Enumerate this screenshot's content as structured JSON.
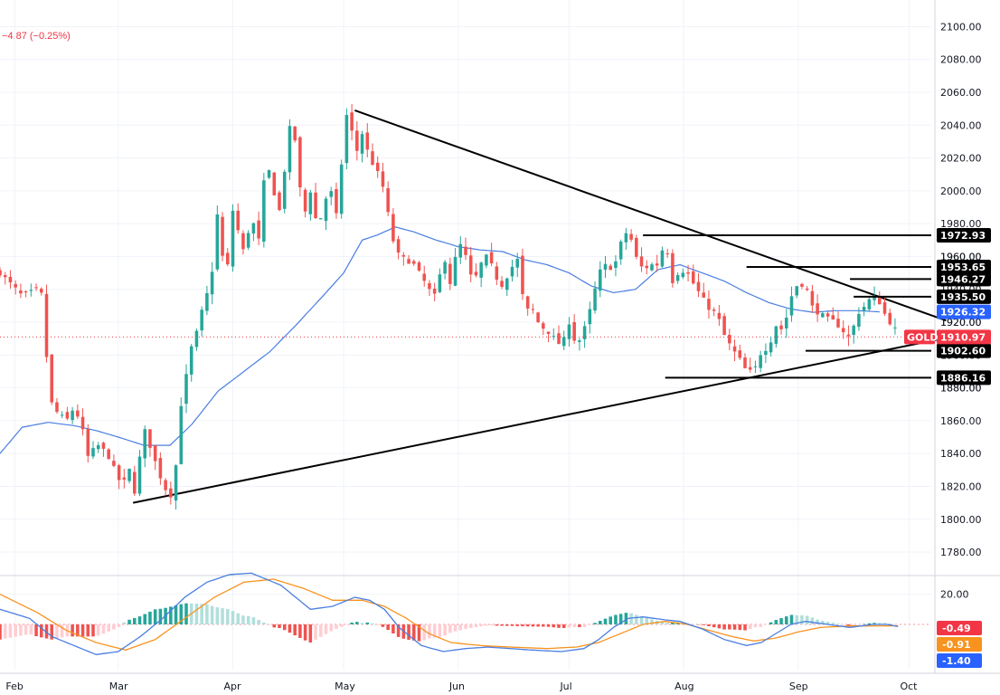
{
  "header": {
    "change": "−4.87 (−0.25%)"
  },
  "colors": {
    "up": "#26a69a",
    "down": "#ef5350",
    "ma": "#4a7ee0",
    "macd": "#4a7ee0",
    "signal": "#f7931e",
    "hist_pos_strong": "#26a69a",
    "hist_pos_weak": "#b2dfdb",
    "hist_neg_strong": "#ef5350",
    "hist_neg_weak": "#ffcdd2",
    "grid": "#f0f3fa",
    "label_black": "#000000",
    "price_red": "#f23645"
  },
  "chart_data": [
    {
      "type": "candlestick",
      "symbol": "GOLD",
      "x_labels": [
        "Feb",
        "Mar",
        "Apr",
        "May",
        "Jun",
        "Jul",
        "Aug",
        "Sep",
        "Oct"
      ],
      "x_label_days": [
        0,
        28,
        59,
        89,
        120,
        150,
        181,
        212,
        242
      ],
      "x_range_days": [
        -4,
        248
      ],
      "y_ticks": [
        1780,
        1800,
        1820,
        1840,
        1860,
        1880,
        1900,
        1920,
        1940,
        1960,
        1980,
        2000,
        2020,
        2040,
        2060,
        2080,
        2100
      ],
      "y_range": [
        1769,
        2103
      ],
      "ohlc_anchors": [
        [
          -4,
          1950
        ],
        [
          2,
          1936
        ],
        [
          6,
          1940
        ],
        [
          8,
          1935
        ],
        [
          9,
          1875
        ],
        [
          11,
          1866
        ],
        [
          14,
          1860
        ],
        [
          16,
          1868
        ],
        [
          18,
          1858
        ],
        [
          20,
          1836
        ],
        [
          22,
          1846
        ],
        [
          25,
          1840
        ],
        [
          27,
          1830
        ],
        [
          29,
          1820
        ],
        [
          31,
          1830
        ],
        [
          32,
          1811
        ],
        [
          35,
          1855
        ],
        [
          37,
          1842
        ],
        [
          39,
          1828
        ],
        [
          42,
          1812
        ],
        [
          44,
          1838
        ],
        [
          45,
          1870
        ],
        [
          48,
          1907
        ],
        [
          50,
          1918
        ],
        [
          51,
          1932
        ],
        [
          53,
          1942
        ],
        [
          55,
          1990
        ],
        [
          57,
          1940
        ],
        [
          59,
          1988
        ],
        [
          62,
          1962
        ],
        [
          64,
          1984
        ],
        [
          66,
          1970
        ],
        [
          68,
          2020
        ],
        [
          70,
          2000
        ],
        [
          72,
          1985
        ],
        [
          74,
          2040
        ],
        [
          76,
          2030
        ],
        [
          78,
          1982
        ],
        [
          80,
          2000
        ],
        [
          82,
          1976
        ],
        [
          84,
          1995
        ],
        [
          86,
          2000
        ],
        [
          87,
          1985
        ],
        [
          89,
          2030
        ],
        [
          90,
          2050
        ],
        [
          91,
          2040
        ],
        [
          92,
          2020
        ],
        [
          94,
          2035
        ],
        [
          96,
          2020
        ],
        [
          98,
          2012
        ],
        [
          100,
          2000
        ],
        [
          102,
          1972
        ],
        [
          104,
          1960
        ],
        [
          106,
          1958
        ],
        [
          108,
          1955
        ],
        [
          110,
          1948
        ],
        [
          112,
          1940
        ],
        [
          114,
          1935
        ],
        [
          116,
          1962
        ],
        [
          118,
          1942
        ],
        [
          120,
          1970
        ],
        [
          122,
          1960
        ],
        [
          124,
          1943
        ],
        [
          126,
          1955
        ],
        [
          128,
          1961
        ],
        [
          130,
          1948
        ],
        [
          132,
          1942
        ],
        [
          134,
          1952
        ],
        [
          136,
          1958
        ],
        [
          138,
          1927
        ],
        [
          140,
          1928
        ],
        [
          142,
          1918
        ],
        [
          144,
          1915
        ],
        [
          146,
          1910
        ],
        [
          148,
          1905
        ],
        [
          150,
          1920
        ],
        [
          152,
          1905
        ],
        [
          154,
          1915
        ],
        [
          156,
          1930
        ],
        [
          158,
          1950
        ],
        [
          160,
          1955
        ],
        [
          162,
          1952
        ],
        [
          164,
          1968
        ],
        [
          166,
          1977
        ],
        [
          168,
          1960
        ],
        [
          170,
          1952
        ],
        [
          172,
          1955
        ],
        [
          174,
          1955
        ],
        [
          176,
          1970
        ],
        [
          178,
          1945
        ],
        [
          180,
          1952
        ],
        [
          182,
          1950
        ],
        [
          184,
          1942
        ],
        [
          186,
          1935
        ],
        [
          188,
          1928
        ],
        [
          190,
          1925
        ],
        [
          192,
          1912
        ],
        [
          194,
          1904
        ],
        [
          196,
          1898
        ],
        [
          198,
          1890
        ],
        [
          200,
          1890
        ],
        [
          202,
          1902
        ],
        [
          204,
          1905
        ],
        [
          206,
          1918
        ],
        [
          208,
          1915
        ],
        [
          210,
          1935
        ],
        [
          212,
          1944
        ],
        [
          214,
          1942
        ],
        [
          216,
          1928
        ],
        [
          218,
          1925
        ],
        [
          220,
          1922
        ],
        [
          222,
          1920
        ],
        [
          224,
          1915
        ],
        [
          226,
          1910
        ],
        [
          228,
          1925
        ],
        [
          230,
          1930
        ],
        [
          232,
          1936
        ],
        [
          234,
          1932
        ],
        [
          236,
          1922
        ],
        [
          238,
          1917
        ],
        [
          239,
          1910.97
        ]
      ],
      "ma_anchors": [
        [
          -4,
          1840
        ],
        [
          2,
          1856
        ],
        [
          9,
          1859
        ],
        [
          16,
          1857
        ],
        [
          22,
          1854
        ],
        [
          28,
          1850
        ],
        [
          35,
          1845
        ],
        [
          42,
          1845
        ],
        [
          48,
          1858
        ],
        [
          55,
          1878
        ],
        [
          62,
          1890
        ],
        [
          69,
          1902
        ],
        [
          76,
          1918
        ],
        [
          83,
          1935
        ],
        [
          89,
          1950
        ],
        [
          94,
          1970
        ],
        [
          98,
          1973
        ],
        [
          103,
          1978
        ],
        [
          108,
          1975
        ],
        [
          114,
          1970
        ],
        [
          120,
          1966
        ],
        [
          126,
          1964
        ],
        [
          132,
          1963
        ],
        [
          138,
          1958
        ],
        [
          144,
          1955
        ],
        [
          150,
          1950
        ],
        [
          156,
          1942
        ],
        [
          162,
          1938
        ],
        [
          168,
          1940
        ],
        [
          174,
          1952
        ],
        [
          180,
          1955
        ],
        [
          186,
          1950
        ],
        [
          192,
          1945
        ],
        [
          198,
          1938
        ],
        [
          204,
          1932
        ],
        [
          210,
          1928
        ],
        [
          216,
          1926
        ],
        [
          222,
          1927
        ],
        [
          228,
          1927
        ],
        [
          234,
          1926.32
        ]
      ],
      "trendlines": [
        {
          "name": "upper",
          "from": [
            92,
            2049
          ],
          "to": [
            252,
            1921
          ]
        },
        {
          "name": "lower",
          "from": [
            32,
            1810
          ],
          "to": [
            251,
            1910
          ]
        }
      ],
      "horizontal_levels": [
        {
          "value": 1972.93,
          "label": "1972.93",
          "start_day": 170,
          "color": "black"
        },
        {
          "value": 1953.65,
          "label": "1953.65",
          "start_day": 198,
          "color": "black"
        },
        {
          "value": 1946.27,
          "label": "1946.27",
          "start_day": 226,
          "color": "black"
        },
        {
          "value": 1935.5,
          "label": "1935.50",
          "start_day": 227,
          "color": "black"
        },
        {
          "value": 1902.6,
          "label": "1902.60",
          "start_day": 214,
          "color": "black"
        },
        {
          "value": 1886.16,
          "label": "1886.16",
          "start_day": 176,
          "color": "black"
        }
      ],
      "price_tags": [
        {
          "value": 1926.32,
          "label": "1926.32",
          "color": "blue"
        },
        {
          "value": 1910.97,
          "label": "1910.97",
          "color": "red",
          "symbol_tag": "GOLD"
        }
      ],
      "y_axis_partial_labels": [
        {
          "value": 1960,
          "label": "1960.00"
        },
        {
          "value": 1920,
          "label": "1920.00"
        },
        {
          "value": 1880,
          "label": "1880.00"
        }
      ],
      "last_price": 1910.97
    },
    {
      "type": "macd",
      "y_ticks": [
        20
      ],
      "y_tick_labels": [
        "20.00"
      ],
      "y_range": [
        -30,
        30
      ],
      "macd_anchors": [
        [
          -4,
          10
        ],
        [
          4,
          4
        ],
        [
          10,
          -8
        ],
        [
          16,
          -14
        ],
        [
          22,
          -20
        ],
        [
          28,
          -18
        ],
        [
          34,
          -8
        ],
        [
          40,
          4
        ],
        [
          46,
          18
        ],
        [
          52,
          28
        ],
        [
          58,
          33
        ],
        [
          64,
          34
        ],
        [
          72,
          26
        ],
        [
          80,
          10
        ],
        [
          86,
          12
        ],
        [
          92,
          18
        ],
        [
          96,
          16
        ],
        [
          100,
          10
        ],
        [
          104,
          -2
        ],
        [
          110,
          -14
        ],
        [
          116,
          -18
        ],
        [
          122,
          -16
        ],
        [
          128,
          -15
        ],
        [
          134,
          -16
        ],
        [
          140,
          -17
        ],
        [
          148,
          -18
        ],
        [
          154,
          -16
        ],
        [
          158,
          -10
        ],
        [
          162,
          -2
        ],
        [
          166,
          4
        ],
        [
          170,
          5
        ],
        [
          176,
          3
        ],
        [
          180,
          2
        ],
        [
          186,
          -3
        ],
        [
          192,
          -10
        ],
        [
          198,
          -14
        ],
        [
          202,
          -12
        ],
        [
          206,
          -6
        ],
        [
          210,
          0
        ],
        [
          214,
          2
        ],
        [
          220,
          0
        ],
        [
          226,
          -2
        ],
        [
          232,
          0
        ],
        [
          236,
          0
        ],
        [
          239,
          -1.4
        ]
      ],
      "signal_anchors": [
        [
          -4,
          20
        ],
        [
          6,
          8
        ],
        [
          14,
          -4
        ],
        [
          22,
          -12
        ],
        [
          30,
          -17
        ],
        [
          38,
          -10
        ],
        [
          46,
          4
        ],
        [
          54,
          18
        ],
        [
          62,
          28
        ],
        [
          70,
          30
        ],
        [
          78,
          24
        ],
        [
          86,
          16
        ],
        [
          94,
          16
        ],
        [
          100,
          12
        ],
        [
          106,
          4
        ],
        [
          112,
          -6
        ],
        [
          118,
          -12
        ],
        [
          126,
          -14
        ],
        [
          134,
          -15
        ],
        [
          144,
          -16
        ],
        [
          152,
          -15
        ],
        [
          158,
          -12
        ],
        [
          164,
          -6
        ],
        [
          170,
          0
        ],
        [
          176,
          2
        ],
        [
          182,
          0
        ],
        [
          188,
          -4
        ],
        [
          194,
          -8
        ],
        [
          200,
          -11
        ],
        [
          206,
          -9
        ],
        [
          212,
          -5
        ],
        [
          218,
          -2
        ],
        [
          226,
          -1
        ],
        [
          232,
          -1
        ],
        [
          239,
          -0.91
        ]
      ],
      "tags": [
        {
          "value": -0.49,
          "label": "-0.49",
          "color": "red"
        },
        {
          "value": -0.91,
          "label": "-0.91",
          "color": "orange"
        },
        {
          "value": -1.4,
          "label": "-1.40",
          "color": "blue"
        }
      ]
    }
  ]
}
